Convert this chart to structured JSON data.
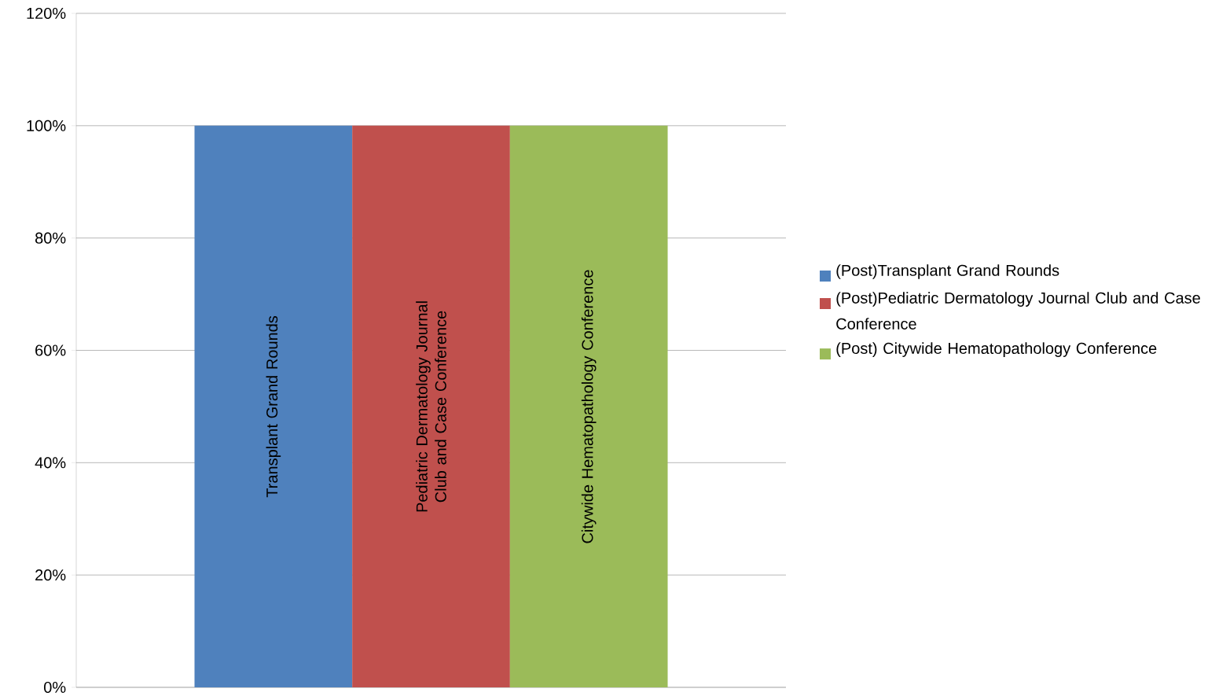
{
  "chart_data": {
    "type": "bar",
    "categories": [
      null
    ],
    "series": [
      {
        "name": "(Post)Transplant Grand Rounds",
        "color": "#4f81bd",
        "values": [
          100
        ]
      },
      {
        "name": "(Post)Pediatric Dermatology Journal Club and Case Conference",
        "color": "#c0504d",
        "values": [
          100
        ]
      },
      {
        "name": "(Post) Citywide Hematopathology Conference",
        "color": "#9bbb59",
        "values": [
          100
        ]
      }
    ],
    "annotations": [
      "Transplant  Grand Rounds",
      "Pediatric Dermatology Journal Club and Case Conference",
      "Citywide Hematopathology Conference"
    ],
    "ylim": [
      0,
      120
    ],
    "yticks": [
      {
        "value": 0,
        "label": "0%"
      },
      {
        "value": 20,
        "label": "20%"
      },
      {
        "value": 40,
        "label": "40%"
      },
      {
        "value": 60,
        "label": "60%"
      },
      {
        "value": 80,
        "label": "80%"
      },
      {
        "value": 100,
        "label": "100%"
      },
      {
        "value": 120,
        "label": "120%"
      }
    ],
    "grid": "y",
    "legend": "right"
  }
}
